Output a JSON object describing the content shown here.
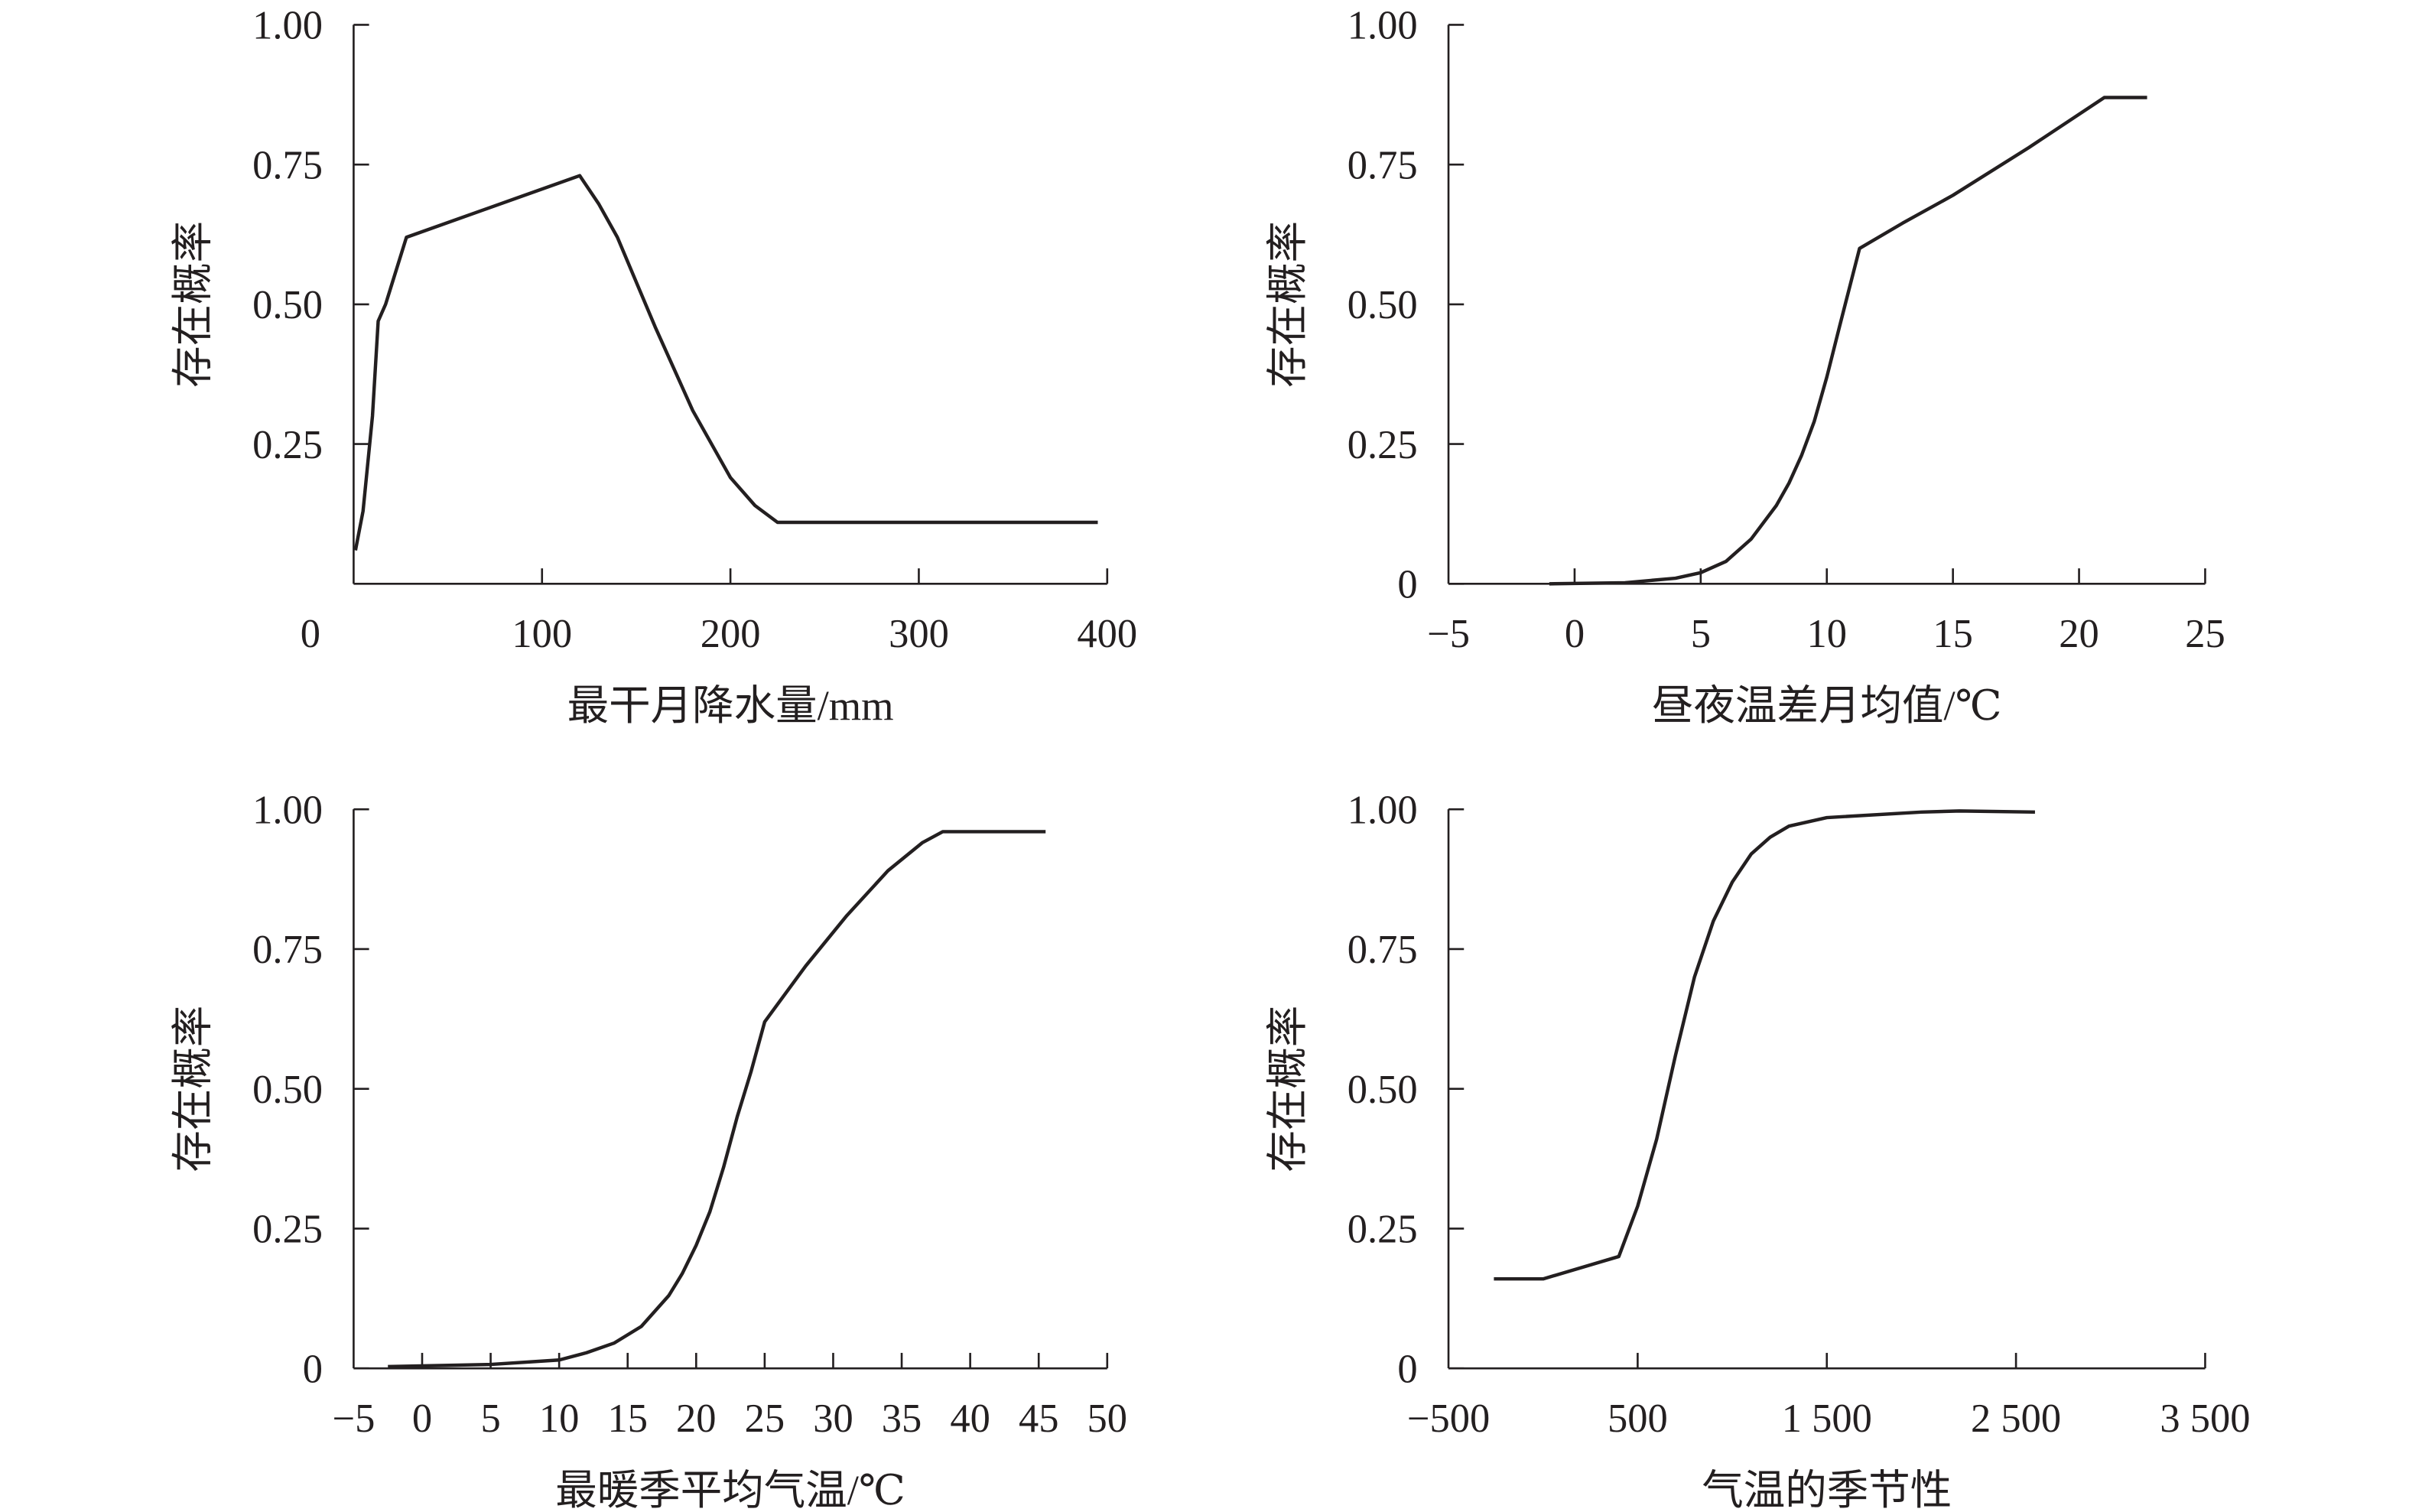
{
  "chart_data": [
    {
      "type": "line",
      "xlabel": "最干月降水量/mm",
      "ylabel": "存在概率",
      "xlim": [
        0,
        400
      ],
      "ylim": [
        0,
        1
      ],
      "xticks": [
        0,
        100,
        200,
        300,
        400
      ],
      "xtick_labels": [
        "0",
        "100",
        "200",
        "300",
        "400"
      ],
      "yticks": [
        0.25,
        0.5,
        0.75,
        1.0
      ],
      "ytick_labels": [
        "0.25",
        "0.50",
        "0.75",
        "1.00"
      ],
      "x": [
        1,
        5,
        10,
        13,
        17,
        28,
        120,
        130,
        140,
        160,
        180,
        200,
        213,
        225,
        395
      ],
      "y": [
        0.06,
        0.13,
        0.3,
        0.47,
        0.5,
        0.62,
        0.73,
        0.68,
        0.62,
        0.46,
        0.31,
        0.19,
        0.14,
        0.11,
        0.11
      ]
    },
    {
      "type": "line",
      "xlabel": "昼夜温差月均值/℃",
      "ylabel": "存在概率",
      "xlim": [
        -5,
        25
      ],
      "ylim": [
        0,
        1
      ],
      "xticks": [
        -5,
        0,
        5,
        10,
        15,
        20,
        25
      ],
      "xtick_labels": [
        "−5",
        "0",
        "5",
        "10",
        "15",
        "20",
        "25"
      ],
      "yticks": [
        0,
        0.25,
        0.5,
        0.75,
        1.0
      ],
      "ytick_labels": [
        "0",
        "0.25",
        "0.50",
        "0.75",
        "1.00"
      ],
      "x": [
        -1,
        2,
        4,
        5,
        6,
        7,
        8,
        8.5,
        9,
        9.5,
        10,
        10.5,
        11.3,
        13,
        15,
        18,
        21,
        22.7
      ],
      "y": [
        0,
        0.002,
        0.01,
        0.02,
        0.04,
        0.08,
        0.14,
        0.18,
        0.23,
        0.29,
        0.37,
        0.46,
        0.6,
        0.645,
        0.695,
        0.78,
        0.87,
        0.87
      ]
    },
    {
      "type": "line",
      "xlabel": "最暖季平均气温/℃",
      "ylabel": "存在概率",
      "xlim": [
        -5,
        50
      ],
      "ylim": [
        0,
        1
      ],
      "xticks": [
        -5,
        0,
        5,
        10,
        15,
        20,
        25,
        30,
        35,
        40,
        45,
        50
      ],
      "xtick_labels": [
        "−5",
        "0",
        "5",
        "10",
        "15",
        "20",
        "25",
        "30",
        "35",
        "40",
        "45",
        "50"
      ],
      "yticks": [
        0,
        0.25,
        0.5,
        0.75,
        1.0
      ],
      "ytick_labels": [
        "0",
        "0.25",
        "0.50",
        "0.75",
        "1.00"
      ],
      "x": [
        -2.5,
        5,
        10,
        12,
        14,
        16,
        18,
        19,
        20,
        21,
        22,
        23,
        24,
        25,
        28,
        31,
        34,
        36.5,
        38,
        45.5
      ],
      "y": [
        0.003,
        0.007,
        0.015,
        0.028,
        0.045,
        0.075,
        0.13,
        0.17,
        0.22,
        0.28,
        0.36,
        0.45,
        0.53,
        0.62,
        0.72,
        0.81,
        0.89,
        0.94,
        0.96,
        0.96
      ]
    },
    {
      "type": "line",
      "xlabel": "气温的季节性",
      "ylabel": "存在概率",
      "xlim": [
        -500,
        3500
      ],
      "ylim": [
        0,
        1
      ],
      "xticks": [
        -500,
        500,
        1500,
        2500,
        3500
      ],
      "xtick_labels": [
        "−500",
        "500",
        "1 500",
        "2 500",
        "3 500"
      ],
      "yticks": [
        0,
        0.25,
        0.5,
        0.75,
        1.0
      ],
      "ytick_labels": [
        "0",
        "0.25",
        "0.50",
        "0.75",
        "1.00"
      ],
      "x": [
        -260,
        0,
        400,
        500,
        600,
        700,
        800,
        900,
        1000,
        1100,
        1200,
        1300,
        1500,
        2000,
        2200,
        2600
      ],
      "y": [
        0.16,
        0.16,
        0.2,
        0.29,
        0.41,
        0.56,
        0.7,
        0.8,
        0.87,
        0.92,
        0.95,
        0.97,
        0.985,
        0.995,
        0.997,
        0.995
      ]
    }
  ]
}
